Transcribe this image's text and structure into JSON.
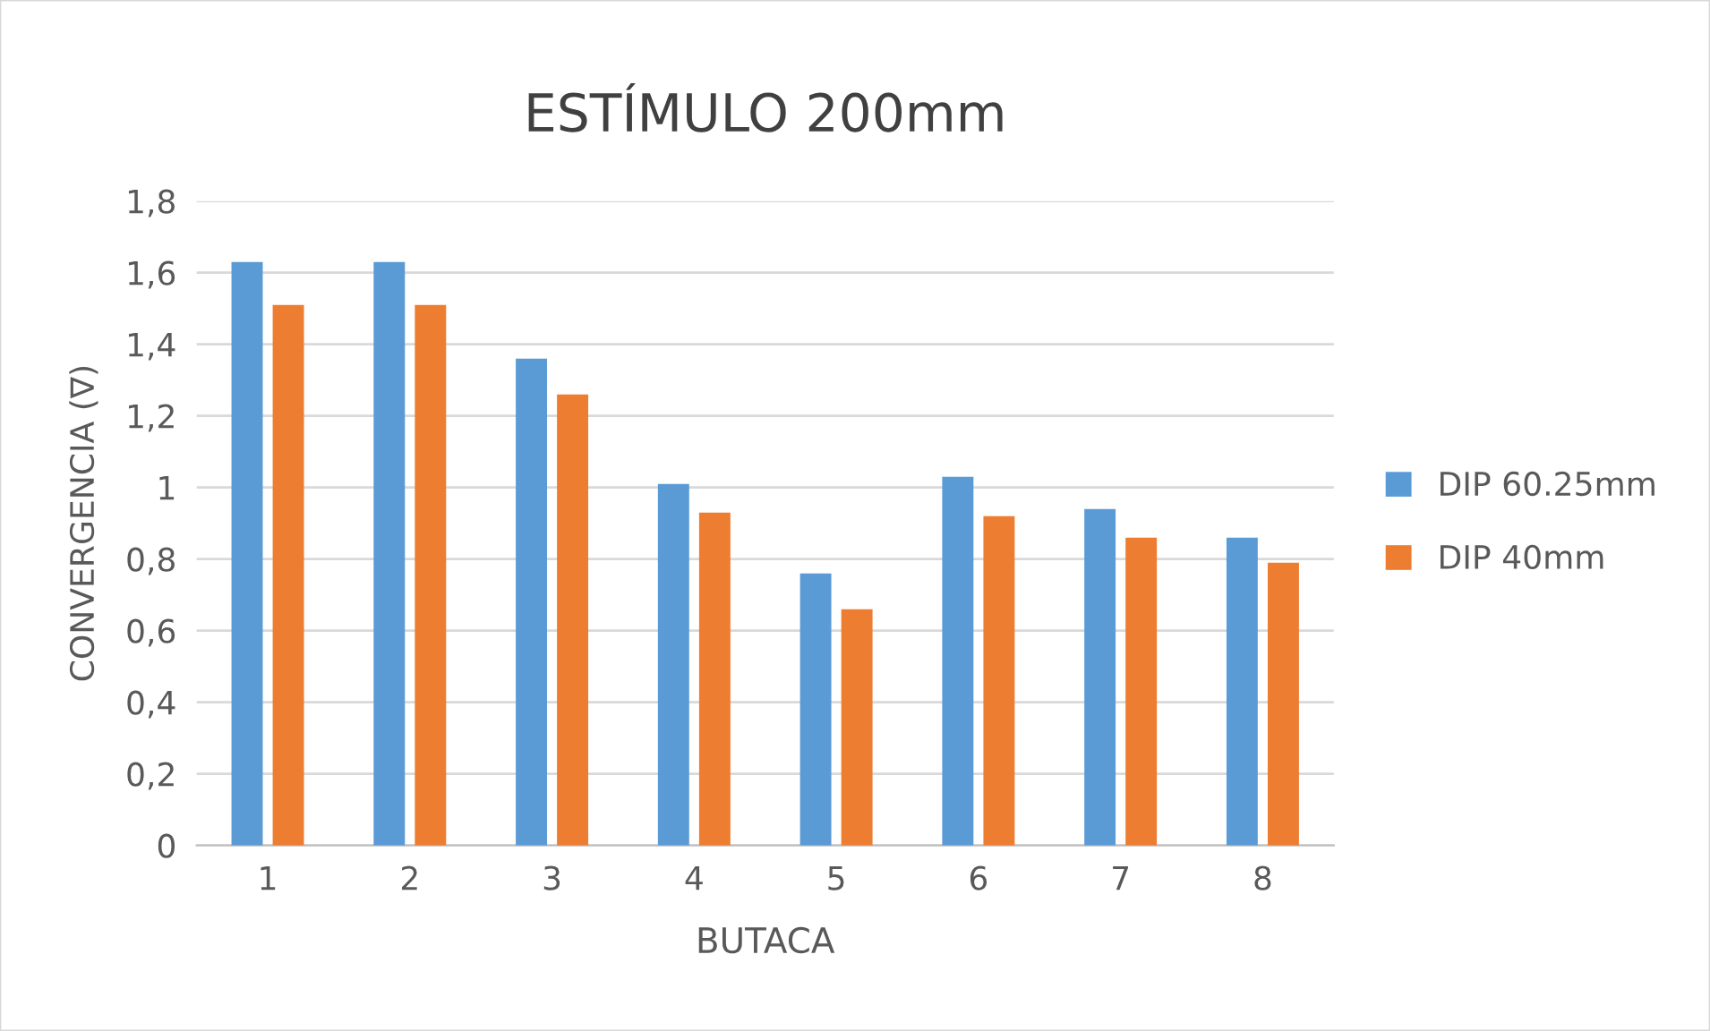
{
  "chart_data": {
    "type": "bar",
    "title": "ESTÍMULO 200mm",
    "xlabel": "BUTACA",
    "ylabel": "CONVERGENCIA (∇)",
    "categories": [
      "1",
      "2",
      "3",
      "4",
      "5",
      "6",
      "7",
      "8"
    ],
    "series": [
      {
        "name": "DIP 60.25mm",
        "color": "#5b9bd5",
        "values": [
          1.63,
          1.63,
          1.36,
          1.01,
          0.76,
          1.03,
          0.94,
          0.86
        ]
      },
      {
        "name": "DIP 40mm",
        "color": "#ed7d31",
        "values": [
          1.51,
          1.51,
          1.26,
          0.93,
          0.66,
          0.92,
          0.86,
          0.79
        ]
      }
    ],
    "ylim": [
      0,
      1.8
    ],
    "yticks": [
      0,
      {
        "value": 0.2,
        "label": "0,2"
      },
      {
        "value": 0.4,
        "label": "0,4"
      },
      {
        "value": 0.6,
        "label": "0,6"
      },
      {
        "value": 0.8,
        "label": "0,8"
      },
      1,
      {
        "value": 1.2,
        "label": "1,2"
      },
      {
        "value": 1.4,
        "label": "1,4"
      },
      {
        "value": 1.6,
        "label": "1,6"
      },
      {
        "value": 1.8,
        "label": "1,8"
      }
    ],
    "grid": "y",
    "legend": "right"
  }
}
